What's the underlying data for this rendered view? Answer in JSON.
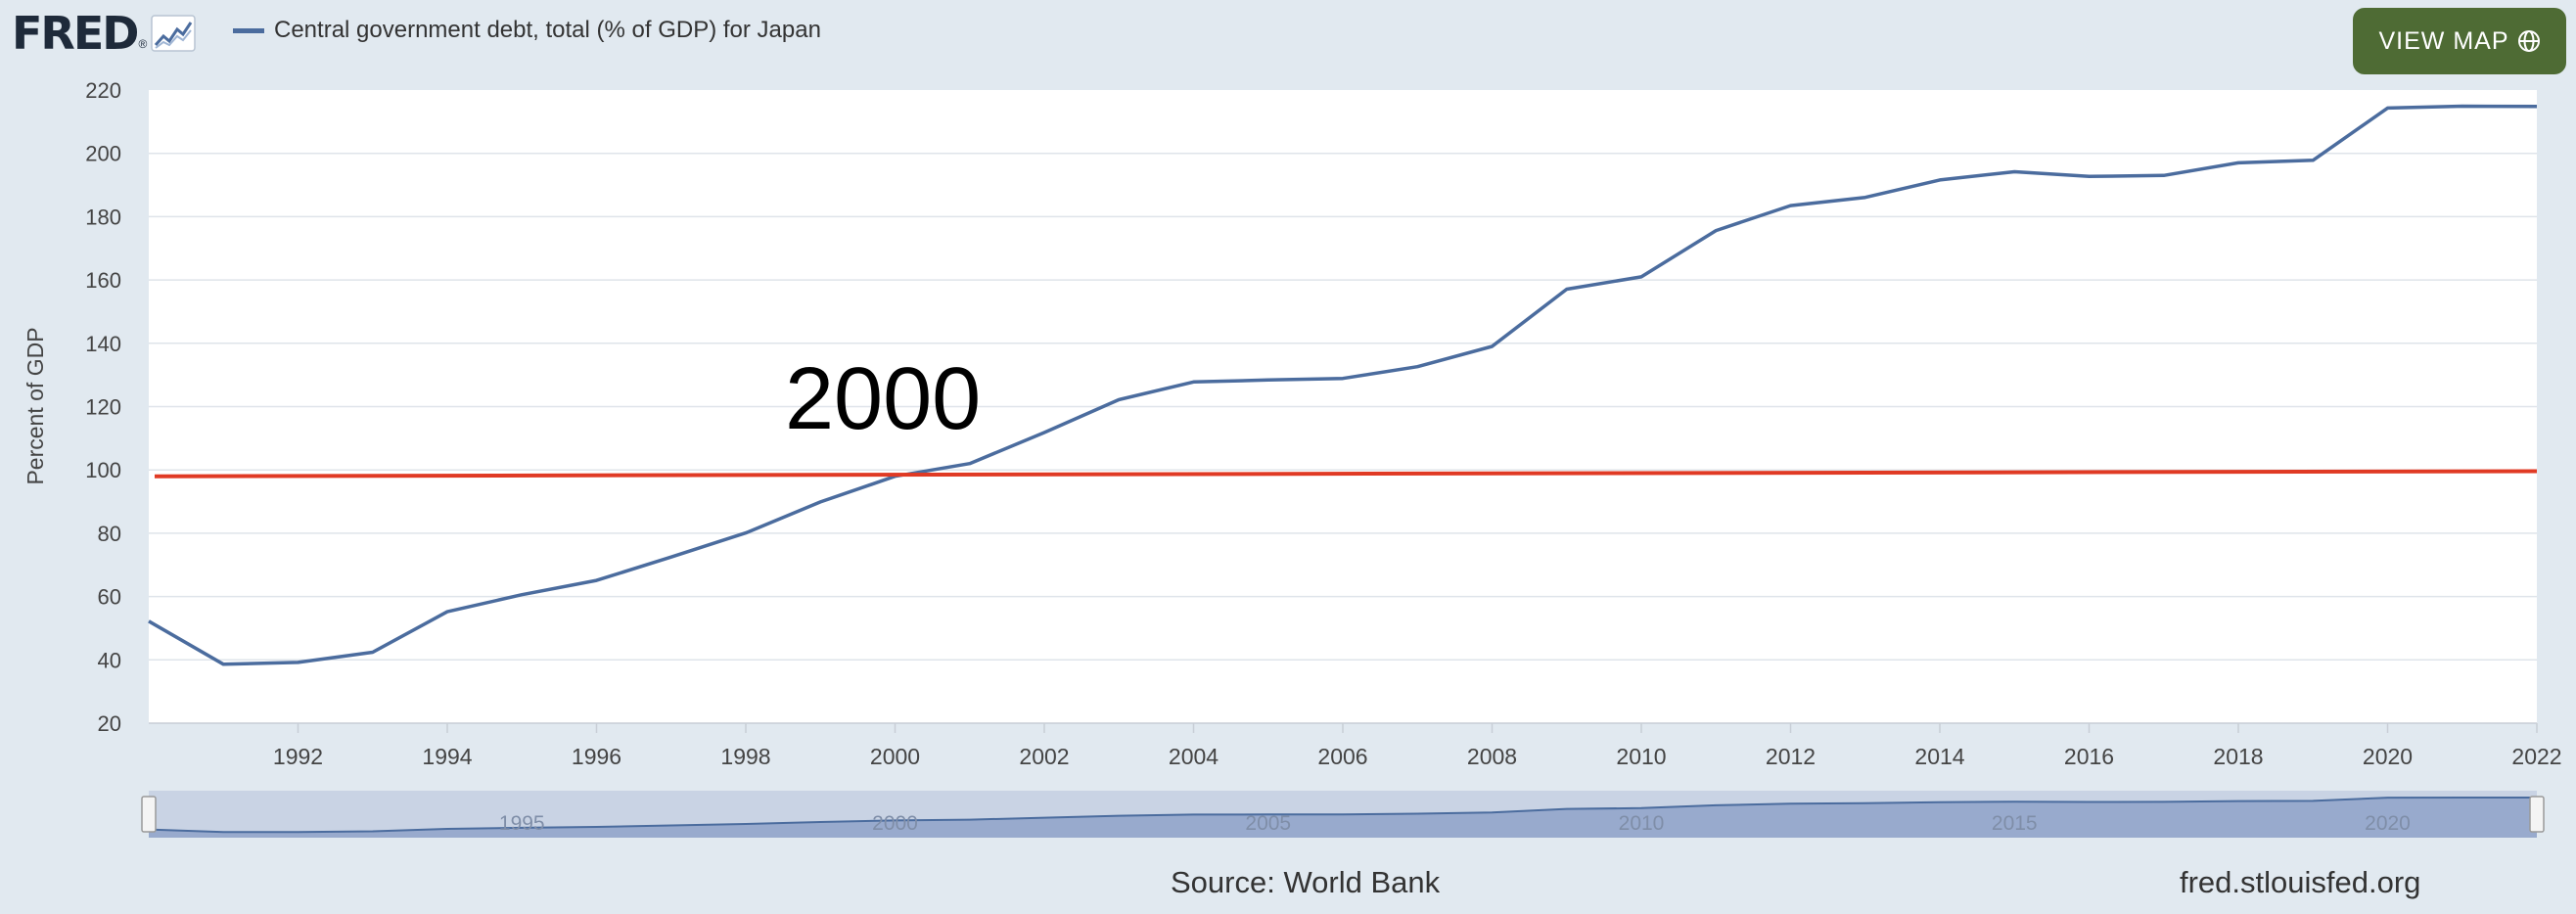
{
  "header": {
    "logo_text": "FRED",
    "logo_mark": "®",
    "legend_label": "Central government debt, total (% of GDP) for Japan",
    "view_map_label": "VIEW MAP",
    "view_map_icon": "globe-icon"
  },
  "footer": {
    "source": "Source: World Bank",
    "site": "fred.stlouisfed.org"
  },
  "colors": {
    "page_bg": "#e1e9f0",
    "series": "#4b6c9e",
    "reference_line": "#e03a24",
    "view_map_button": "#4e6b34",
    "navigator_fill": "#8fa2c9"
  },
  "chart_data": {
    "type": "line",
    "ylabel": "Percent of GDP",
    "xlabel": "",
    "ylim": [
      20,
      220
    ],
    "xlim": [
      1990,
      2022
    ],
    "yticks": [
      20,
      40,
      60,
      80,
      100,
      120,
      140,
      160,
      180,
      200,
      220
    ],
    "xticks": [
      1992,
      1994,
      1996,
      1998,
      2000,
      2002,
      2004,
      2006,
      2008,
      2010,
      2012,
      2014,
      2016,
      2018,
      2020,
      2022
    ],
    "grid": "horizontal",
    "series": [
      {
        "name": "Central government debt, total (% of GDP) for Japan",
        "color": "#4b6c9e",
        "x": [
          1990,
          1991,
          1992,
          1993,
          1994,
          1995,
          1996,
          1997,
          1998,
          1999,
          2000,
          2001,
          2002,
          2003,
          2004,
          2005,
          2006,
          2007,
          2008,
          2009,
          2010,
          2011,
          2012,
          2013,
          2014,
          2015,
          2016,
          2017,
          2018,
          2019,
          2020,
          2021,
          2022
        ],
        "y": [
          52.2,
          38.6,
          39.2,
          42.4,
          55.2,
          60.6,
          65.1,
          72.5,
          80.1,
          89.9,
          98.0,
          102.0,
          111.8,
          122.2,
          127.8,
          128.4,
          128.9,
          132.6,
          139.0,
          157.1,
          161.0,
          175.6,
          183.5,
          186.1,
          191.6,
          194.2,
          192.7,
          193.0,
          197.0,
          197.8,
          214.3,
          214.9,
          214.8
        ]
      }
    ],
    "reference_line": {
      "color": "#e03a24",
      "y": [
        98.0,
        99.6
      ],
      "annotation": "2000"
    },
    "navigator": {
      "ticks": [
        "1995",
        "2000",
        "2005",
        "2010",
        "2015",
        "2020"
      ]
    }
  }
}
